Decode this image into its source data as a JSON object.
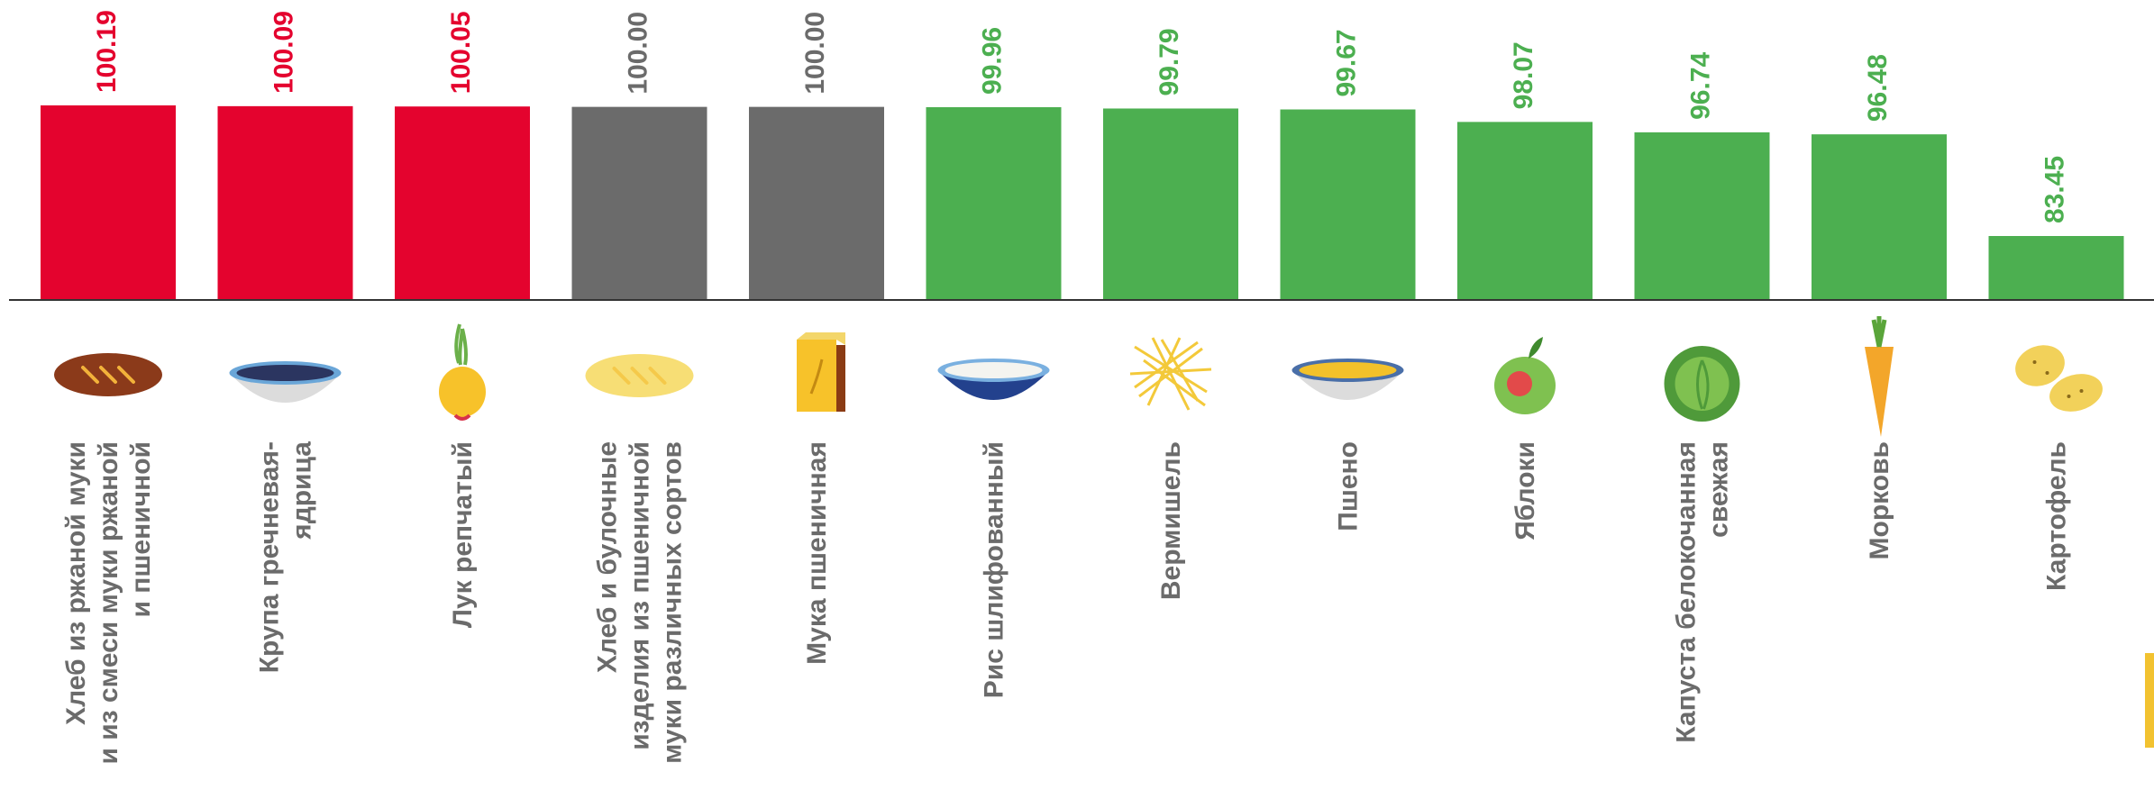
{
  "colors": {
    "above": "#e4032e",
    "equal": "#6b6b6b",
    "below": "#4caf50",
    "axis": "#333333",
    "label": "#6b6b6b",
    "accent_tab": "#f2c230"
  },
  "chart_data": {
    "type": "bar",
    "title": "",
    "xlabel": "",
    "ylabel": "",
    "ylim": [
      0,
      100.19
    ],
    "grid": false,
    "legend": "none",
    "categories": [
      [
        "Хлеб из ржаной муки",
        "и из смеси муки ржаной",
        "и пшеничной"
      ],
      [
        "Крупа гречневая-",
        "ядрица"
      ],
      [
        "Лук репчатый"
      ],
      [
        "Хлеб и булочные",
        "изделия из пшеничной",
        "муки различных сортов"
      ],
      [
        "Мука пшеничная"
      ],
      [
        "Рис шлифованный"
      ],
      [
        "Вермишель"
      ],
      [
        "Пшено"
      ],
      [
        "Яблоки"
      ],
      [
        "Капуста белокочанная",
        "свежая"
      ],
      [
        "Морковь"
      ],
      [
        "Картофель"
      ]
    ],
    "values": [
      100.19,
      100.09,
      100.05,
      100.0,
      100.0,
      99.96,
      99.79,
      99.67,
      98.07,
      96.74,
      96.48,
      83.45
    ],
    "value_labels": [
      "100.19",
      "100.09",
      "100.05",
      "100.00",
      "100.00",
      "99.96",
      "99.79",
      "99.67",
      "98.07",
      "96.74",
      "96.48",
      "83.45"
    ],
    "colors": [
      "above",
      "above",
      "above",
      "equal",
      "equal",
      "below",
      "below",
      "below",
      "below",
      "below",
      "below",
      "below"
    ],
    "icons": [
      "rye-bread-icon",
      "buckwheat-bowl-icon",
      "onion-icon",
      "wheat-bread-icon",
      "flour-bag-icon",
      "rice-bowl-icon",
      "vermicelli-icon",
      "millet-bowl-icon",
      "apple-icon",
      "cabbage-icon",
      "carrot-icon",
      "potato-icon"
    ]
  }
}
